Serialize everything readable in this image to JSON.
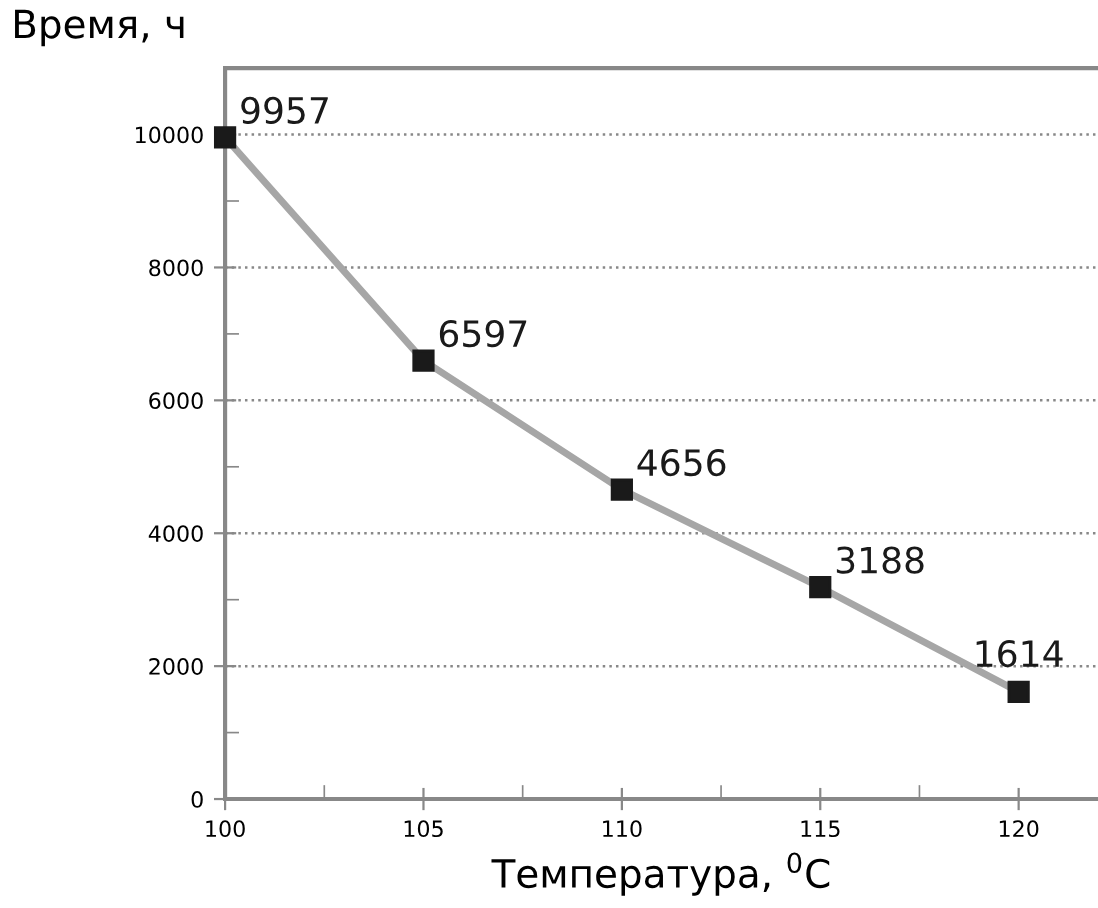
{
  "chart_data": {
    "type": "line",
    "xlabel": "Температура, $^{0}$C",
    "ylabel": "Время, ч",
    "x": [
      100,
      105,
      110,
      115,
      120
    ],
    "series": [
      {
        "color": "#a6a6a6",
        "values": [
          9957,
          6597,
          4656,
          3188,
          1614
        ]
      }
    ],
    "xlim": [
      100,
      122
    ],
    "ylim": [
      0,
      11000
    ],
    "xticks": [
      100,
      105,
      110,
      115,
      120
    ],
    "yticks": [
      0,
      2000,
      4000,
      6000,
      8000,
      10000
    ],
    "grid": "y",
    "marker": "square",
    "line_style": "solid",
    "data_labels": true
  }
}
